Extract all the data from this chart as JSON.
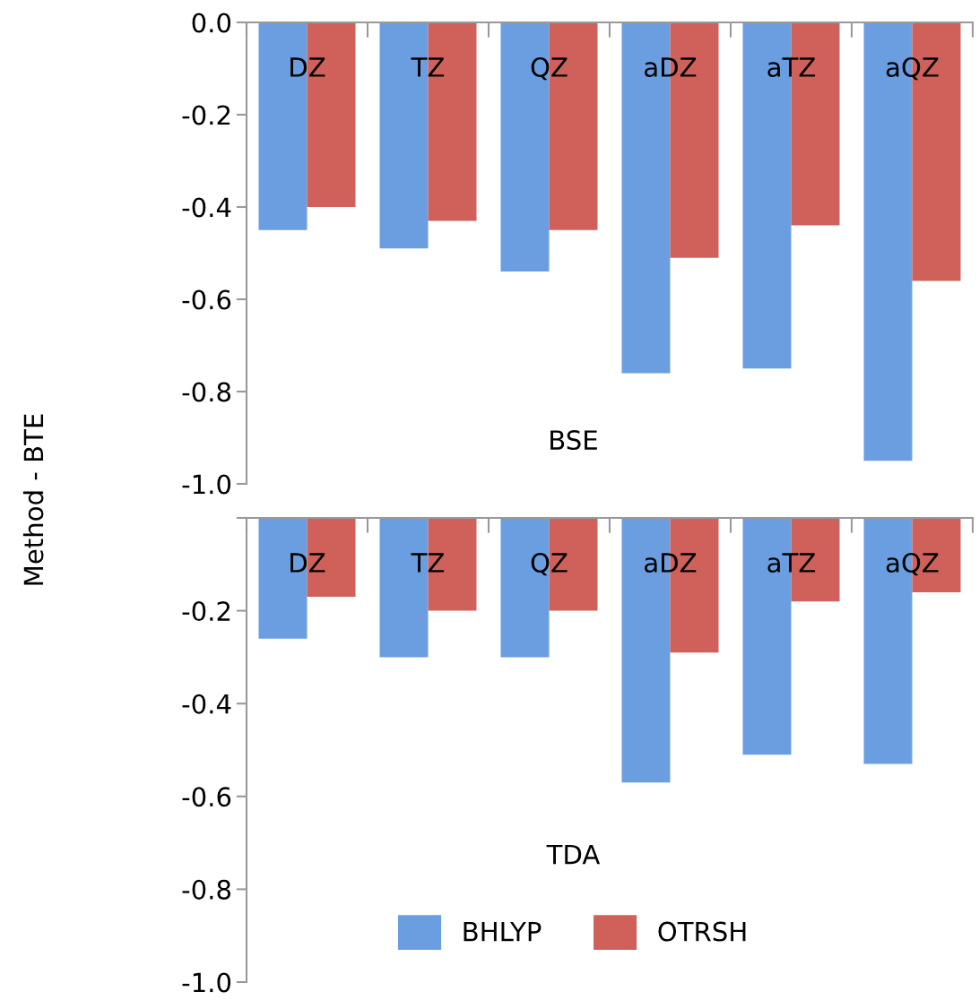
{
  "chart_data": [
    {
      "type": "bar",
      "ylabel": "Method - BTE",
      "categories": [
        "DZ",
        "TZ",
        "QZ",
        "aDZ",
        "aTZ",
        "aQZ"
      ],
      "series": [
        {
          "color": "#6a9ee0",
          "values": [
            -0.45,
            -0.49,
            -0.54,
            -0.76,
            -0.75,
            -0.95
          ]
        },
        {
          "color": "#d0605a",
          "values": [
            -0.4,
            -0.43,
            -0.45,
            -0.51,
            -0.44,
            -0.56
          ]
        }
      ],
      "ylim": [
        -1.0,
        0.0
      ],
      "yticks": [
        {
          "value": -1.0,
          "label": "-1.0"
        },
        {
          "value": -0.8,
          "label": "-0.8"
        },
        {
          "value": -0.6,
          "label": "-0.6"
        },
        {
          "value": -0.4,
          "label": "-0.4"
        },
        {
          "value": -0.2,
          "label": "-0.2"
        },
        {
          "value": 0.0,
          "label": "0.0"
        }
      ],
      "annotations": [
        "BSE"
      ],
      "grid": false
    },
    {
      "type": "bar",
      "categories": [
        "DZ",
        "TZ",
        "QZ",
        "aDZ",
        "aTZ",
        "aQZ"
      ],
      "series": [
        {
          "name": "BHLYP",
          "color": "#6a9ee0",
          "values": [
            -0.26,
            -0.3,
            -0.3,
            -0.57,
            -0.51,
            -0.53
          ]
        },
        {
          "name": "OTRSH",
          "color": "#d0605a",
          "values": [
            -0.17,
            -0.2,
            -0.2,
            -0.29,
            -0.18,
            -0.16
          ]
        }
      ],
      "ylim": [
        -1.0,
        0.0
      ],
      "yticks": [
        {
          "value": -1.0,
          "label": "-1.0"
        },
        {
          "value": -0.8,
          "label": "-0.8"
        },
        {
          "value": -0.6,
          "label": "-0.6"
        },
        {
          "value": -0.4,
          "label": "-0.4"
        },
        {
          "value": -0.2,
          "label": "-0.2"
        },
        {
          "value": 0.0,
          "label": null
        }
      ],
      "annotations": [
        "TDA"
      ],
      "grid": false,
      "legend": "bottom"
    }
  ]
}
